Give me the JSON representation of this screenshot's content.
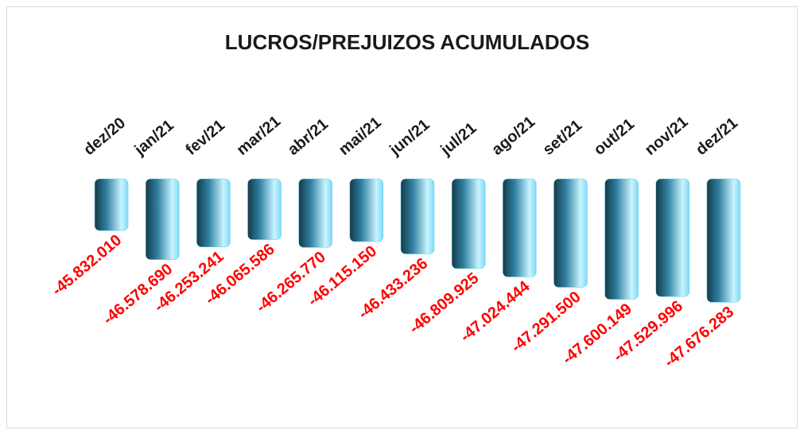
{
  "chart_data": {
    "type": "bar",
    "title": "LUCROS/PREJUIZOS ACUMULADOS",
    "categories": [
      "dez/20",
      "jan/21",
      "fev/21",
      "mar/21",
      "abr/21",
      "mai/21",
      "jun/21",
      "jul/21",
      "ago/21",
      "set/21",
      "out/21",
      "nov/21",
      "dez/21"
    ],
    "values": [
      -45832010,
      -46578690,
      -46253241,
      -46065586,
      -46265770,
      -46115150,
      -46433236,
      -46809925,
      -47024444,
      -47291500,
      -47600149,
      -47529996,
      -47676283
    ],
    "value_labels": [
      "-45.832.010",
      "-46.578.690",
      "-46.253.241",
      "-46.065.586",
      "-46.265.770",
      "-46.115.150",
      "-46.433.236",
      "-46.809.925",
      "-47.024.444",
      "-47.291.500",
      "-47.600.149",
      "-47.529.996",
      "-47.676.283"
    ],
    "ylim": [
      -49000000,
      -44500000
    ],
    "color": "#5fd3f5",
    "value_label_color": "#ff0000"
  }
}
